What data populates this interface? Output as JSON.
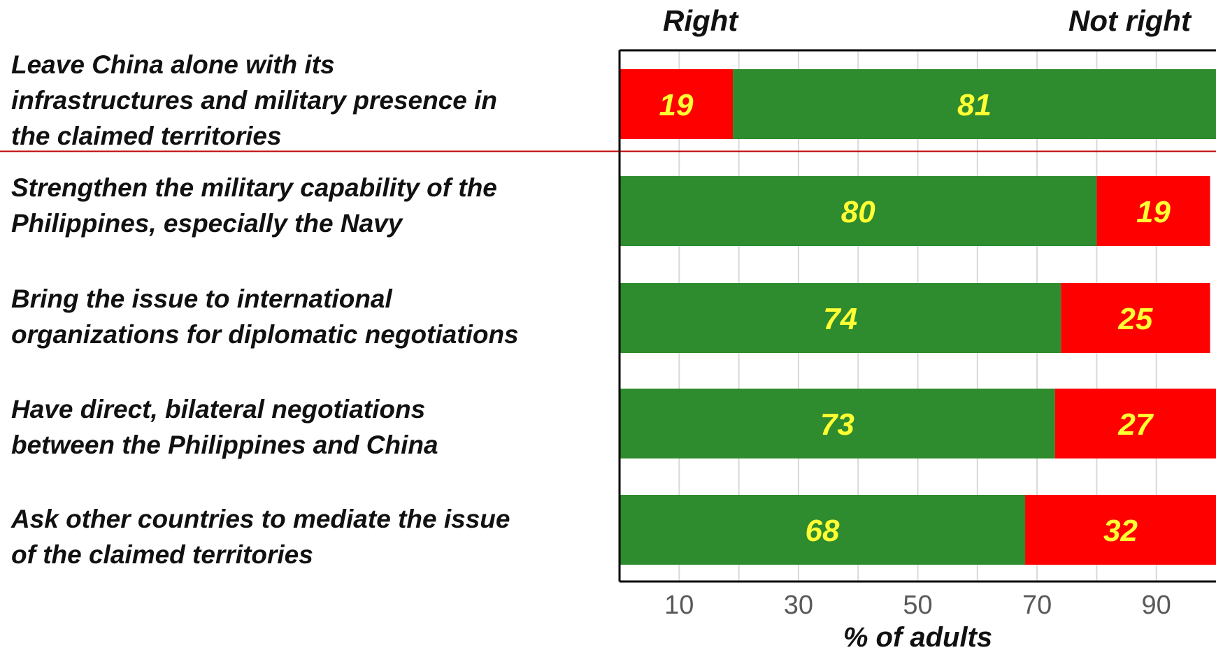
{
  "chart_data": {
    "type": "bar",
    "stacked": true,
    "orientation": "horizontal",
    "header_left": "Right",
    "header_right": "Not right",
    "xlabel": "% of adults",
    "xlim": [
      0,
      100
    ],
    "xticks": [
      "10",
      "30",
      "50",
      "70",
      "90"
    ],
    "grid": true,
    "categories": [
      "Leave China alone with its\ninfrastructures and military presence in\nthe claimed territories",
      "Strengthen the military capability of the\nPhilippines, especially the Navy",
      "Bring the issue to international\norganizations for diplomatic negotiations",
      "Have direct, bilateral negotiations\nbetween the Philippines and China",
      "Ask other countries to mediate the issue\nof the claimed territories"
    ],
    "series": [
      {
        "name": "Right",
        "values": [
          19,
          80,
          74,
          73,
          68
        ]
      },
      {
        "name": "Not right",
        "values": [
          81,
          19,
          25,
          27,
          32
        ]
      }
    ],
    "segment_colors": [
      [
        "#ff0000",
        "#2e8b2e"
      ],
      [
        "#2e8b2e",
        "#ff0000"
      ],
      [
        "#2e8b2e",
        "#ff0000"
      ],
      [
        "#2e8b2e",
        "#ff0000"
      ],
      [
        "#2e8b2e",
        "#ff0000"
      ]
    ],
    "value_label_color": "#ffff33",
    "divider_after_row": 1
  }
}
